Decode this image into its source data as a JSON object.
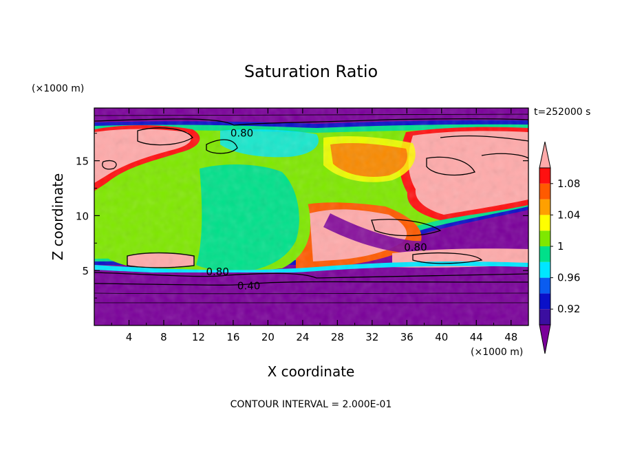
{
  "chart_data": {
    "type": "heatmap",
    "title": "Saturation Ratio",
    "xlabel": "X coordinate",
    "ylabel": "Z coordinate",
    "x_unit": "(×1000 m)",
    "y_unit": "(×1000 m)",
    "time_label": "t=252000 s",
    "footer": "CONTOUR INTERVAL = 2.000E-01",
    "xlim": [
      0,
      50
    ],
    "ylim": [
      0,
      19.8
    ],
    "x_ticks": [
      "4",
      "8",
      "12",
      "16",
      "20",
      "24",
      "28",
      "32",
      "36",
      "40",
      "44",
      "48"
    ],
    "y_ticks": [
      "5",
      "10",
      "15"
    ],
    "contour_labels": [
      {
        "text": "0.80",
        "x": 17.0,
        "y": 17.5
      },
      {
        "text": "0.80",
        "x": 14.2,
        "y": 4.9
      },
      {
        "text": "0.40",
        "x": 17.8,
        "y": 3.6
      },
      {
        "text": "0.80",
        "x": 37.0,
        "y": 7.1
      }
    ],
    "colorbar": {
      "labels": [
        "0.92",
        "0.96",
        "1",
        "1.04",
        "1.08"
      ],
      "colors": [
        "#7a009a",
        "#3b0ea0",
        "#0a10c8",
        "#0a5cf0",
        "#00e6ff",
        "#00e08a",
        "#7fe800",
        "#ffff00",
        "#ffa000",
        "#ff5a00",
        "#ff1010",
        "#ffaaaa"
      ]
    }
  }
}
